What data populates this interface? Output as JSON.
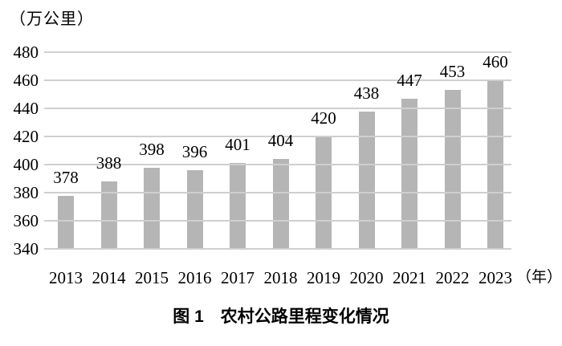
{
  "figure": {
    "unit_label": "（万公里）",
    "x_axis_suffix": "（年）",
    "caption": "图 1　农村公路里程变化情况"
  },
  "colors": {
    "bar": "#b5b5b5",
    "gridline": "#cfcfcf",
    "text": "#000000",
    "background": "#ffffff"
  },
  "chart_data": {
    "type": "bar",
    "title": "图1 农村公路里程变化情况",
    "categories": [
      "2013",
      "2014",
      "2015",
      "2016",
      "2017",
      "2018",
      "2019",
      "2020",
      "2021",
      "2022",
      "2023"
    ],
    "values": [
      378,
      388,
      398,
      396,
      401,
      404,
      420,
      438,
      447,
      453,
      460
    ],
    "xlabel": "年",
    "ylabel": "万公里",
    "ylim": [
      340,
      480
    ],
    "yticks": [
      340,
      360,
      380,
      400,
      420,
      440,
      460,
      480
    ],
    "grid": true,
    "legend": false,
    "data_labels": true
  }
}
